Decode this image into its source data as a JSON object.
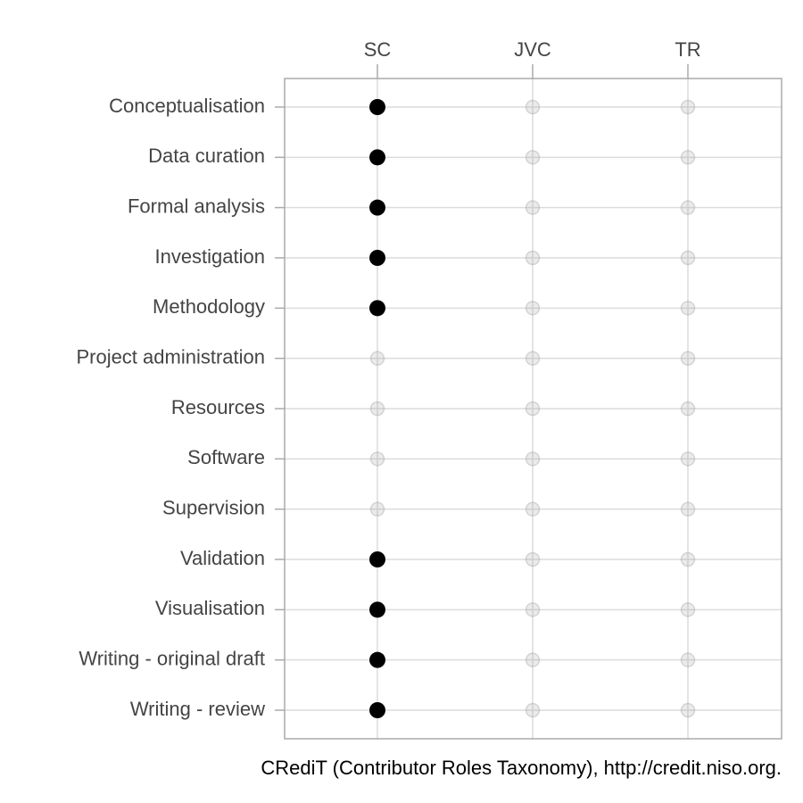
{
  "chart_data": {
    "type": "dot-matrix",
    "caption": "CRediT (Contributor Roles Taxonomy), http://credit.niso.org.",
    "categories": [
      "Conceptualisation",
      "Data curation",
      "Formal analysis",
      "Investigation",
      "Methodology",
      "Project administration",
      "Resources",
      "Software",
      "Supervision",
      "Validation",
      "Visualisation",
      "Writing - original draft",
      "Writing - review"
    ],
    "series": [
      {
        "name": "SC",
        "values": [
          1,
          1,
          1,
          1,
          1,
          0,
          0,
          0,
          0,
          1,
          1,
          1,
          1
        ]
      },
      {
        "name": "JVC",
        "values": [
          0,
          0,
          0,
          0,
          0,
          0,
          0,
          0,
          0,
          0,
          0,
          0,
          0
        ]
      },
      {
        "name": "TR",
        "values": [
          0,
          0,
          0,
          0,
          0,
          0,
          0,
          0,
          0,
          0,
          0,
          0,
          0
        ]
      }
    ],
    "color": "#000000",
    "inactive_color": "#999999",
    "grid": true
  }
}
